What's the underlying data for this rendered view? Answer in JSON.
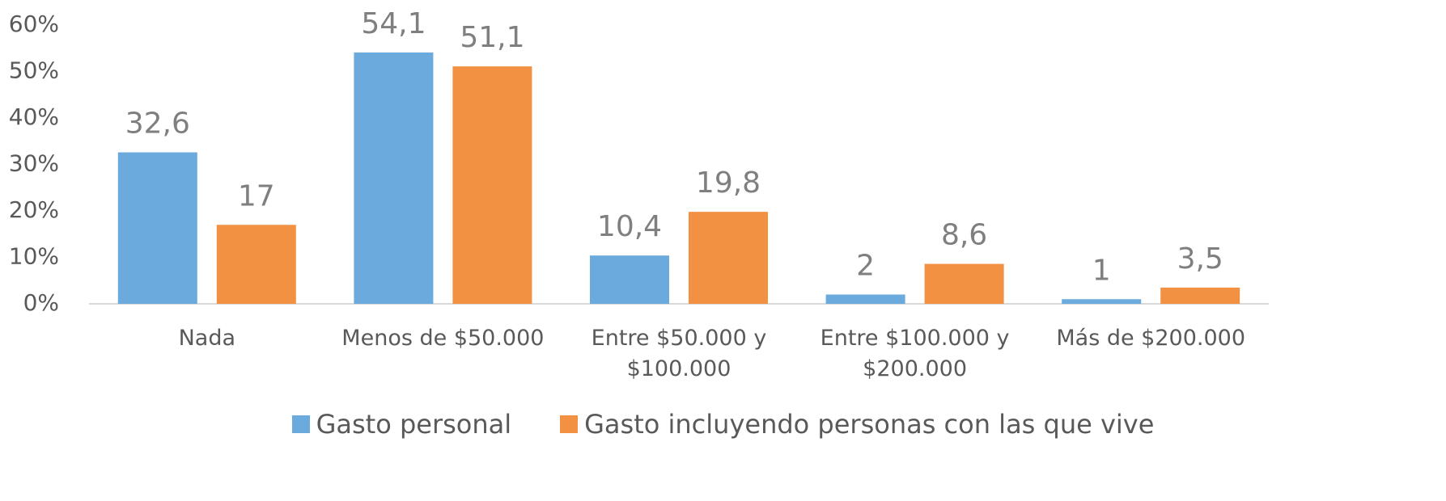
{
  "chart_data": {
    "type": "bar",
    "categories": [
      "Nada",
      "Menos de $50.000",
      "Entre $50.000 y $100.000",
      "Entre $100.000 y $200.000",
      "Más de $200.000"
    ],
    "series": [
      {
        "name": "Gasto personal",
        "color": "#6aaadc",
        "values": [
          32.6,
          54.1,
          10.4,
          2,
          1
        ],
        "value_labels": [
          "32,6",
          "54,1",
          "10,4",
          "2",
          "1"
        ]
      },
      {
        "name": "Gasto incluyendo personas con las que vive",
        "color": "#f29141",
        "values": [
          17,
          51.1,
          19.8,
          8.6,
          3.5
        ],
        "value_labels": [
          "17",
          "51,1",
          "19,8",
          "8,6",
          "3,5"
        ]
      }
    ],
    "ylim": [
      0,
      60
    ],
    "yticks": [
      {
        "value": 0,
        "label": "0%"
      },
      {
        "value": 10,
        "label": "10%"
      },
      {
        "value": 20,
        "label": "20%"
      },
      {
        "value": 30,
        "label": "30%"
      },
      {
        "value": 40,
        "label": "40%"
      },
      {
        "value": 50,
        "label": "50%"
      },
      {
        "value": 60,
        "label": "60%"
      }
    ],
    "grid": false
  }
}
